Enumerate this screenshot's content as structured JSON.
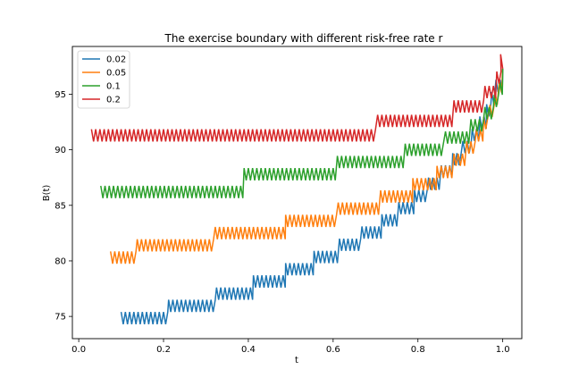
{
  "chart_data": {
    "type": "line",
    "title": "The exercise boundary with different risk-free rate r",
    "xlabel": "t",
    "ylabel": "B(t)",
    "xlim": [
      -0.015,
      1.045
    ],
    "ylim": [
      73.0,
      99.3
    ],
    "x_ticks": [
      0.0,
      0.2,
      0.4,
      0.6,
      0.8,
      1.0
    ],
    "x_tick_labels": [
      "0.0",
      "0.2",
      "0.4",
      "0.6",
      "0.8",
      "1.0"
    ],
    "y_ticks": [
      75,
      80,
      85,
      90,
      95
    ],
    "y_tick_labels": [
      "75",
      "80",
      "85",
      "90",
      "95"
    ],
    "grid": false,
    "legend_position": "top-left",
    "zigzag_period": 0.01,
    "series": [
      {
        "name": "0.02",
        "color": "#1f77b4",
        "amplitude": 0.55,
        "steps": [
          {
            "t": 0.1,
            "level": 74.85
          },
          {
            "t": 0.212,
            "level": 75.95
          },
          {
            "t": 0.325,
            "level": 77.05
          },
          {
            "t": 0.412,
            "level": 78.15
          },
          {
            "t": 0.488,
            "level": 79.25
          },
          {
            "t": 0.555,
            "level": 80.35
          },
          {
            "t": 0.615,
            "level": 81.45
          },
          {
            "t": 0.668,
            "level": 82.55
          },
          {
            "t": 0.715,
            "level": 83.65
          },
          {
            "t": 0.755,
            "level": 84.75
          },
          {
            "t": 0.792,
            "level": 85.85
          },
          {
            "t": 0.825,
            "level": 86.95
          },
          {
            "t": 0.855,
            "level": 88.05
          },
          {
            "t": 0.882,
            "level": 89.15
          },
          {
            "t": 0.906,
            "level": 90.25
          },
          {
            "t": 0.928,
            "level": 91.35
          },
          {
            "t": 0.946,
            "level": 92.45
          },
          {
            "t": 0.962,
            "level": 93.55
          },
          {
            "t": 0.974,
            "level": 94.65
          },
          {
            "t": 0.984,
            "level": 95.75
          }
        ],
        "end": [
          1.0,
          97.3
        ]
      },
      {
        "name": "0.05",
        "color": "#ff7f0e",
        "amplitude": 0.55,
        "steps": [
          {
            "t": 0.075,
            "level": 80.3
          },
          {
            "t": 0.138,
            "level": 81.4
          },
          {
            "t": 0.322,
            "level": 82.5
          },
          {
            "t": 0.488,
            "level": 83.6
          },
          {
            "t": 0.612,
            "level": 84.7
          },
          {
            "t": 0.712,
            "level": 85.8
          },
          {
            "t": 0.788,
            "level": 86.9
          },
          {
            "t": 0.845,
            "level": 88.0
          },
          {
            "t": 0.885,
            "level": 89.1
          },
          {
            "t": 0.915,
            "level": 90.2
          },
          {
            "t": 0.938,
            "level": 91.3
          },
          {
            "t": 0.955,
            "level": 92.4
          },
          {
            "t": 0.97,
            "level": 93.5
          },
          {
            "t": 0.982,
            "level": 94.6
          },
          {
            "t": 0.992,
            "level": 95.7
          }
        ],
        "end": [
          1.0,
          97.3
        ]
      },
      {
        "name": "0.1",
        "color": "#2ca02c",
        "amplitude": 0.55,
        "steps": [
          {
            "t": 0.052,
            "level": 86.2
          },
          {
            "t": 0.39,
            "level": 87.8
          },
          {
            "t": 0.61,
            "level": 88.9
          },
          {
            "t": 0.77,
            "level": 90.0
          },
          {
            "t": 0.865,
            "level": 91.1
          },
          {
            "t": 0.925,
            "level": 92.2
          },
          {
            "t": 0.958,
            "level": 93.3
          },
          {
            "t": 0.98,
            "level": 94.4
          },
          {
            "t": 0.994,
            "level": 95.5
          }
        ],
        "end": [
          1.0,
          97.3
        ]
      },
      {
        "name": "0.2",
        "color": "#d62728",
        "amplitude": 0.55,
        "steps": [
          {
            "t": 0.03,
            "level": 91.3
          },
          {
            "t": 0.705,
            "level": 92.6
          },
          {
            "t": 0.885,
            "level": 93.9
          },
          {
            "t": 0.958,
            "level": 95.2
          },
          {
            "t": 0.986,
            "level": 96.5
          }
        ],
        "end": [
          1.0,
          97.3
        ],
        "peak": [
          0.995,
          98.6
        ]
      }
    ]
  }
}
